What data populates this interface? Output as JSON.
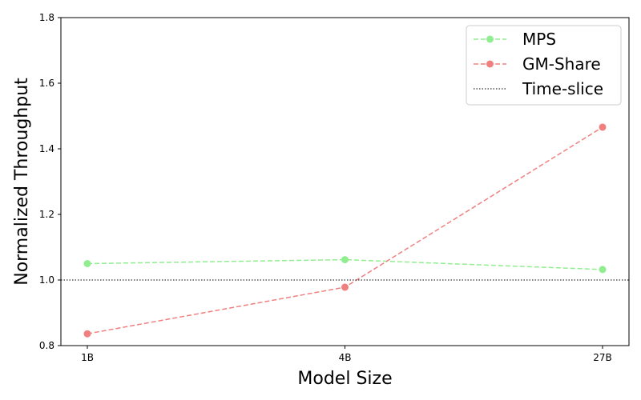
{
  "chart_data": {
    "type": "line",
    "categories": [
      "1B",
      "4B",
      "27B"
    ],
    "series": [
      {
        "name": "MPS",
        "values": [
          1.05,
          1.062,
          1.032
        ],
        "color": "#90ee90",
        "style": "dashed",
        "marker": "circle"
      },
      {
        "name": "GM-Share",
        "values": [
          0.836,
          0.978,
          1.466
        ],
        "color": "#f08080",
        "style": "dashed",
        "marker": "circle"
      },
      {
        "name": "Time-slice",
        "values": [
          1.0,
          1.0,
          1.0
        ],
        "color": "#000000",
        "style": "dotted",
        "marker": "none",
        "span": "full"
      }
    ],
    "title": "",
    "xlabel": "Model Size",
    "ylabel": "Normalized Throughput",
    "ylim": [
      0.8,
      1.8
    ],
    "yticks": [
      "0.8",
      "1.0",
      "1.2",
      "1.4",
      "1.6",
      "1.8"
    ],
    "grid": false,
    "legend_position": "top-right"
  }
}
